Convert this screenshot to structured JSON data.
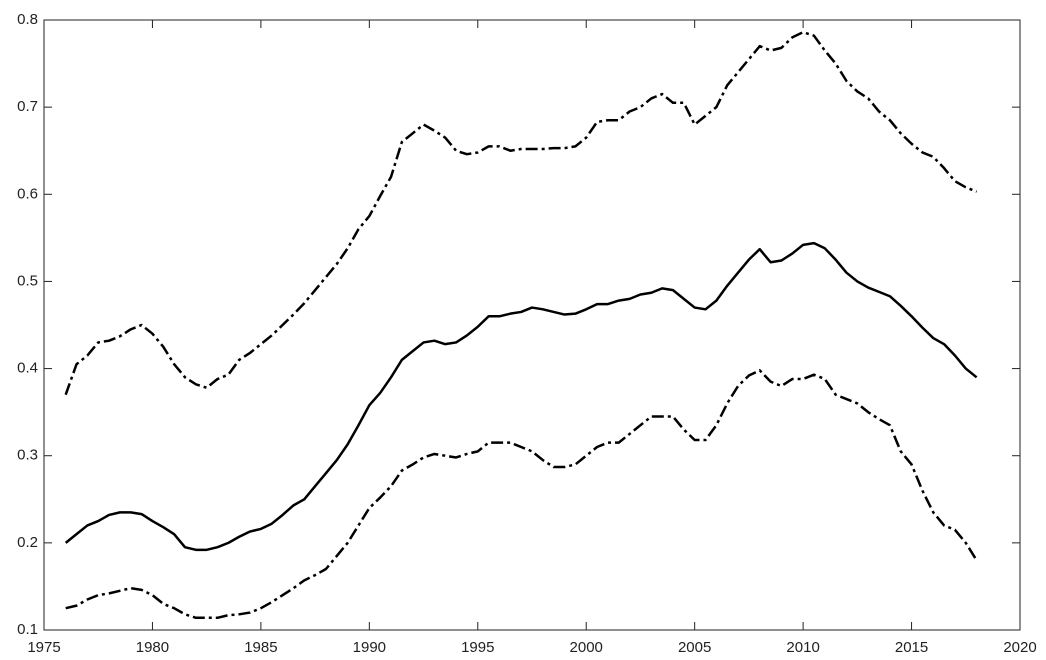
{
  "chart_data": {
    "type": "line",
    "x": [
      1976,
      1976.5,
      1977,
      1977.5,
      1978,
      1978.5,
      1979,
      1979.5,
      1980,
      1980.5,
      1981,
      1981.5,
      1982,
      1982.5,
      1983,
      1983.5,
      1984,
      1984.5,
      1985,
      1985.5,
      1986,
      1986.5,
      1987,
      1987.5,
      1988,
      1988.5,
      1989,
      1989.5,
      1990,
      1990.5,
      1991,
      1991.5,
      1992,
      1992.5,
      1993,
      1993.5,
      1994,
      1994.5,
      1995,
      1995.5,
      1996,
      1996.5,
      1997,
      1997.5,
      1998,
      1998.5,
      1999,
      1999.5,
      2000,
      2000.5,
      2001,
      2001.5,
      2002,
      2002.5,
      2003,
      2003.5,
      2004,
      2004.5,
      2005,
      2005.5,
      2006,
      2006.5,
      2007,
      2007.5,
      2008,
      2008.5,
      2009,
      2009.5,
      2010,
      2010.5,
      2011,
      2011.5,
      2012,
      2012.5,
      2013,
      2013.5,
      2014,
      2014.5,
      2015,
      2015.5,
      2016,
      2016.5,
      2017,
      2017.5,
      2018
    ],
    "series": [
      {
        "color": "#000000",
        "line_style": "dashdot",
        "values": [
          0.37,
          0.405,
          0.415,
          0.43,
          0.432,
          0.437,
          0.445,
          0.45,
          0.44,
          0.425,
          0.405,
          0.39,
          0.382,
          0.378,
          0.388,
          0.393,
          0.41,
          0.418,
          0.428,
          0.438,
          0.45,
          0.462,
          0.475,
          0.49,
          0.505,
          0.52,
          0.538,
          0.56,
          0.575,
          0.598,
          0.62,
          0.66,
          0.67,
          0.68,
          0.673,
          0.665,
          0.65,
          0.646,
          0.648,
          0.655,
          0.655,
          0.65,
          0.652,
          0.652,
          0.652,
          0.653,
          0.653,
          0.655,
          0.665,
          0.683,
          0.685,
          0.685,
          0.695,
          0.7,
          0.71,
          0.715,
          0.705,
          0.705,
          0.68,
          0.69,
          0.7,
          0.725,
          0.74,
          0.755,
          0.77,
          0.765,
          0.768,
          0.78,
          0.786,
          0.782,
          0.765,
          0.75,
          0.73,
          0.718,
          0.71,
          0.695,
          0.685,
          0.67,
          0.658,
          0.648,
          0.643,
          0.63,
          0.615,
          0.608,
          0.603
        ]
      },
      {
        "color": "#000000",
        "line_style": "solid",
        "values": [
          0.2,
          0.21,
          0.22,
          0.225,
          0.232,
          0.235,
          0.235,
          0.233,
          0.225,
          0.218,
          0.21,
          0.195,
          0.192,
          0.192,
          0.195,
          0.2,
          0.207,
          0.213,
          0.216,
          0.222,
          0.232,
          0.243,
          0.25,
          0.265,
          0.28,
          0.295,
          0.313,
          0.335,
          0.358,
          0.372,
          0.39,
          0.41,
          0.42,
          0.43,
          0.432,
          0.428,
          0.43,
          0.438,
          0.448,
          0.46,
          0.46,
          0.463,
          0.465,
          0.47,
          0.468,
          0.465,
          0.462,
          0.463,
          0.468,
          0.474,
          0.474,
          0.478,
          0.48,
          0.485,
          0.487,
          0.492,
          0.49,
          0.48,
          0.47,
          0.468,
          0.478,
          0.495,
          0.51,
          0.525,
          0.537,
          0.522,
          0.524,
          0.532,
          0.542,
          0.544,
          0.538,
          0.525,
          0.51,
          0.5,
          0.493,
          0.488,
          0.483,
          0.472,
          0.46,
          0.447,
          0.435,
          0.428,
          0.415,
          0.4,
          0.39
        ]
      },
      {
        "color": "#000000",
        "line_style": "dashdot",
        "values": [
          0.125,
          0.128,
          0.135,
          0.14,
          0.142,
          0.145,
          0.148,
          0.146,
          0.14,
          0.13,
          0.125,
          0.118,
          0.114,
          0.114,
          0.114,
          0.117,
          0.118,
          0.12,
          0.125,
          0.132,
          0.14,
          0.148,
          0.157,
          0.163,
          0.17,
          0.185,
          0.2,
          0.22,
          0.24,
          0.252,
          0.265,
          0.283,
          0.29,
          0.298,
          0.302,
          0.3,
          0.298,
          0.302,
          0.305,
          0.315,
          0.315,
          0.315,
          0.31,
          0.305,
          0.295,
          0.287,
          0.287,
          0.29,
          0.3,
          0.31,
          0.315,
          0.315,
          0.325,
          0.335,
          0.345,
          0.345,
          0.345,
          0.33,
          0.318,
          0.318,
          0.335,
          0.36,
          0.38,
          0.392,
          0.398,
          0.385,
          0.38,
          0.388,
          0.388,
          0.393,
          0.388,
          0.37,
          0.365,
          0.36,
          0.35,
          0.342,
          0.335,
          0.305,
          0.29,
          0.26,
          0.235,
          0.22,
          0.215,
          0.2,
          0.18
        ]
      }
    ],
    "xlim": [
      1975,
      2020
    ],
    "xticks": [
      1975,
      1980,
      1985,
      1990,
      1995,
      2000,
      2005,
      2010,
      2015,
      2020
    ],
    "ylim": [
      0.1,
      0.8
    ],
    "yticks": [
      0.1,
      0.2,
      0.3,
      0.4,
      0.5,
      0.6,
      0.7,
      0.8
    ]
  }
}
